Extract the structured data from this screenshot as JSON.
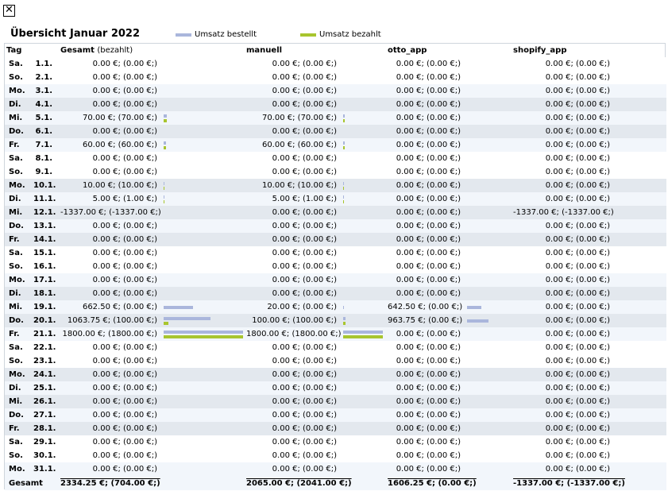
{
  "close_symbol": "✕",
  "title": "Übersicht Januar 2022",
  "legend": {
    "ordered": "Umsatz bestellt",
    "paid": "Umsatz bezahlt",
    "ordered_color": "#aab6dc",
    "paid_color": "#a8c52e"
  },
  "headers": {
    "day": "Tag",
    "total": "Gesamt",
    "total_note": "(bezahlt)",
    "ch1": "manuell",
    "ch2": "otto_app",
    "ch3": "shopify_app"
  },
  "max_value": 1800,
  "rows": [
    {
      "day": "Sa.",
      "date": "1.1.",
      "total": "0.00 €; (0.00 €;)",
      "c1": "0.00 €; (0.00 €;)",
      "c2": "0.00 €; (0.00 €;)",
      "c3": "0.00 €; (0.00 €;)",
      "tot_o": 0,
      "tot_p": 0,
      "c1_o": 0,
      "c1_p": 0,
      "c2_o": 0,
      "c2_p": 0
    },
    {
      "day": "So.",
      "date": "2.1.",
      "total": "0.00 €; (0.00 €;)",
      "c1": "0.00 €; (0.00 €;)",
      "c2": "0.00 €; (0.00 €;)",
      "c3": "0.00 €; (0.00 €;)",
      "tot_o": 0,
      "tot_p": 0,
      "c1_o": 0,
      "c1_p": 0,
      "c2_o": 0,
      "c2_p": 0
    },
    {
      "day": "Mo.",
      "date": "3.1.",
      "total": "0.00 €; (0.00 €;)",
      "c1": "0.00 €; (0.00 €;)",
      "c2": "0.00 €; (0.00 €;)",
      "c3": "0.00 €; (0.00 €;)",
      "tot_o": 0,
      "tot_p": 0,
      "c1_o": 0,
      "c1_p": 0,
      "c2_o": 0,
      "c2_p": 0
    },
    {
      "day": "Di.",
      "date": "4.1.",
      "total": "0.00 €; (0.00 €;)",
      "c1": "0.00 €; (0.00 €;)",
      "c2": "0.00 €; (0.00 €;)",
      "c3": "0.00 €; (0.00 €;)",
      "tot_o": 0,
      "tot_p": 0,
      "c1_o": 0,
      "c1_p": 0,
      "c2_o": 0,
      "c2_p": 0
    },
    {
      "day": "Mi.",
      "date": "5.1.",
      "total": "70.00 €; (70.00 €;)",
      "c1": "70.00 €; (70.00 €;)",
      "c2": "0.00 €; (0.00 €;)",
      "c3": "0.00 €; (0.00 €;)",
      "tot_o": 70,
      "tot_p": 70,
      "c1_o": 70,
      "c1_p": 70,
      "c2_o": 0,
      "c2_p": 0
    },
    {
      "day": "Do.",
      "date": "6.1.",
      "total": "0.00 €; (0.00 €;)",
      "c1": "0.00 €; (0.00 €;)",
      "c2": "0.00 €; (0.00 €;)",
      "c3": "0.00 €; (0.00 €;)",
      "tot_o": 0,
      "tot_p": 0,
      "c1_o": 0,
      "c1_p": 0,
      "c2_o": 0,
      "c2_p": 0
    },
    {
      "day": "Fr.",
      "date": "7.1.",
      "total": "60.00 €; (60.00 €;)",
      "c1": "60.00 €; (60.00 €;)",
      "c2": "0.00 €; (0.00 €;)",
      "c3": "0.00 €; (0.00 €;)",
      "tot_o": 60,
      "tot_p": 60,
      "c1_o": 60,
      "c1_p": 60,
      "c2_o": 0,
      "c2_p": 0
    },
    {
      "day": "Sa.",
      "date": "8.1.",
      "total": "0.00 €; (0.00 €;)",
      "c1": "0.00 €; (0.00 €;)",
      "c2": "0.00 €; (0.00 €;)",
      "c3": "0.00 €; (0.00 €;)",
      "tot_o": 0,
      "tot_p": 0,
      "c1_o": 0,
      "c1_p": 0,
      "c2_o": 0,
      "c2_p": 0
    },
    {
      "day": "So.",
      "date": "9.1.",
      "total": "0.00 €; (0.00 €;)",
      "c1": "0.00 €; (0.00 €;)",
      "c2": "0.00 €; (0.00 €;)",
      "c3": "0.00 €; (0.00 €;)",
      "tot_o": 0,
      "tot_p": 0,
      "c1_o": 0,
      "c1_p": 0,
      "c2_o": 0,
      "c2_p": 0
    },
    {
      "day": "Mo.",
      "date": "10.1.",
      "total": "10.00 €; (10.00 €;)",
      "c1": "10.00 €; (10.00 €;)",
      "c2": "0.00 €; (0.00 €;)",
      "c3": "0.00 €; (0.00 €;)",
      "tot_o": 10,
      "tot_p": 10,
      "c1_o": 10,
      "c1_p": 10,
      "c2_o": 0,
      "c2_p": 0
    },
    {
      "day": "Di.",
      "date": "11.1.",
      "total": "5.00 €; (1.00 €;)",
      "c1": "5.00 €; (1.00 €;)",
      "c2": "0.00 €; (0.00 €;)",
      "c3": "0.00 €; (0.00 €;)",
      "tot_o": 5,
      "tot_p": 1,
      "c1_o": 5,
      "c1_p": 1,
      "c2_o": 0,
      "c2_p": 0
    },
    {
      "day": "Mi.",
      "date": "12.1.",
      "total": "-1337.00 €; (-1337.00 €;)",
      "c1": "0.00 €; (0.00 €;)",
      "c2": "0.00 €; (0.00 €;)",
      "c3": "-1337.00 €; (-1337.00 €;)",
      "tot_o": 0,
      "tot_p": 0,
      "c1_o": 0,
      "c1_p": 0,
      "c2_o": 0,
      "c2_p": 0
    },
    {
      "day": "Do.",
      "date": "13.1.",
      "total": "0.00 €; (0.00 €;)",
      "c1": "0.00 €; (0.00 €;)",
      "c2": "0.00 €; (0.00 €;)",
      "c3": "0.00 €; (0.00 €;)",
      "tot_o": 0,
      "tot_p": 0,
      "c1_o": 0,
      "c1_p": 0,
      "c2_o": 0,
      "c2_p": 0
    },
    {
      "day": "Fr.",
      "date": "14.1.",
      "total": "0.00 €; (0.00 €;)",
      "c1": "0.00 €; (0.00 €;)",
      "c2": "0.00 €; (0.00 €;)",
      "c3": "0.00 €; (0.00 €;)",
      "tot_o": 0,
      "tot_p": 0,
      "c1_o": 0,
      "c1_p": 0,
      "c2_o": 0,
      "c2_p": 0
    },
    {
      "day": "Sa.",
      "date": "15.1.",
      "total": "0.00 €; (0.00 €;)",
      "c1": "0.00 €; (0.00 €;)",
      "c2": "0.00 €; (0.00 €;)",
      "c3": "0.00 €; (0.00 €;)",
      "tot_o": 0,
      "tot_p": 0,
      "c1_o": 0,
      "c1_p": 0,
      "c2_o": 0,
      "c2_p": 0
    },
    {
      "day": "So.",
      "date": "16.1.",
      "total": "0.00 €; (0.00 €;)",
      "c1": "0.00 €; (0.00 €;)",
      "c2": "0.00 €; (0.00 €;)",
      "c3": "0.00 €; (0.00 €;)",
      "tot_o": 0,
      "tot_p": 0,
      "c1_o": 0,
      "c1_p": 0,
      "c2_o": 0,
      "c2_p": 0
    },
    {
      "day": "Mo.",
      "date": "17.1.",
      "total": "0.00 €; (0.00 €;)",
      "c1": "0.00 €; (0.00 €;)",
      "c2": "0.00 €; (0.00 €;)",
      "c3": "0.00 €; (0.00 €;)",
      "tot_o": 0,
      "tot_p": 0,
      "c1_o": 0,
      "c1_p": 0,
      "c2_o": 0,
      "c2_p": 0
    },
    {
      "day": "Di.",
      "date": "18.1.",
      "total": "0.00 €; (0.00 €;)",
      "c1": "0.00 €; (0.00 €;)",
      "c2": "0.00 €; (0.00 €;)",
      "c3": "0.00 €; (0.00 €;)",
      "tot_o": 0,
      "tot_p": 0,
      "c1_o": 0,
      "c1_p": 0,
      "c2_o": 0,
      "c2_p": 0
    },
    {
      "day": "Mi.",
      "date": "19.1.",
      "total": "662.50 €; (0.00 €;)",
      "c1": "20.00 €; (0.00 €;)",
      "c2": "642.50 €; (0.00 €;)",
      "c3": "0.00 €; (0.00 €;)",
      "tot_o": 662.5,
      "tot_p": 0,
      "c1_o": 20,
      "c1_p": 0,
      "c2_o": 642.5,
      "c2_p": 0
    },
    {
      "day": "Do.",
      "date": "20.1.",
      "total": "1063.75 €; (100.00 €;)",
      "c1": "100.00 €; (100.00 €;)",
      "c2": "963.75 €; (0.00 €;)",
      "c3": "0.00 €; (0.00 €;)",
      "tot_o": 1063.75,
      "tot_p": 100,
      "c1_o": 100,
      "c1_p": 100,
      "c2_o": 963.75,
      "c2_p": 0
    },
    {
      "day": "Fr.",
      "date": "21.1.",
      "total": "1800.00 €; (1800.00 €;)",
      "c1": "1800.00 €; (1800.00 €;)",
      "c2": "0.00 €; (0.00 €;)",
      "c3": "0.00 €; (0.00 €;)",
      "tot_o": 1800,
      "tot_p": 1800,
      "c1_o": 1800,
      "c1_p": 1800,
      "c2_o": 0,
      "c2_p": 0
    },
    {
      "day": "Sa.",
      "date": "22.1.",
      "total": "0.00 €; (0.00 €;)",
      "c1": "0.00 €; (0.00 €;)",
      "c2": "0.00 €; (0.00 €;)",
      "c3": "0.00 €; (0.00 €;)",
      "tot_o": 0,
      "tot_p": 0,
      "c1_o": 0,
      "c1_p": 0,
      "c2_o": 0,
      "c2_p": 0
    },
    {
      "day": "So.",
      "date": "23.1.",
      "total": "0.00 €; (0.00 €;)",
      "c1": "0.00 €; (0.00 €;)",
      "c2": "0.00 €; (0.00 €;)",
      "c3": "0.00 €; (0.00 €;)",
      "tot_o": 0,
      "tot_p": 0,
      "c1_o": 0,
      "c1_p": 0,
      "c2_o": 0,
      "c2_p": 0
    },
    {
      "day": "Mo.",
      "date": "24.1.",
      "total": "0.00 €; (0.00 €;)",
      "c1": "0.00 €; (0.00 €;)",
      "c2": "0.00 €; (0.00 €;)",
      "c3": "0.00 €; (0.00 €;)",
      "tot_o": 0,
      "tot_p": 0,
      "c1_o": 0,
      "c1_p": 0,
      "c2_o": 0,
      "c2_p": 0
    },
    {
      "day": "Di.",
      "date": "25.1.",
      "total": "0.00 €; (0.00 €;)",
      "c1": "0.00 €; (0.00 €;)",
      "c2": "0.00 €; (0.00 €;)",
      "c3": "0.00 €; (0.00 €;)",
      "tot_o": 0,
      "tot_p": 0,
      "c1_o": 0,
      "c1_p": 0,
      "c2_o": 0,
      "c2_p": 0
    },
    {
      "day": "Mi.",
      "date": "26.1.",
      "total": "0.00 €; (0.00 €;)",
      "c1": "0.00 €; (0.00 €;)",
      "c2": "0.00 €; (0.00 €;)",
      "c3": "0.00 €; (0.00 €;)",
      "tot_o": 0,
      "tot_p": 0,
      "c1_o": 0,
      "c1_p": 0,
      "c2_o": 0,
      "c2_p": 0
    },
    {
      "day": "Do.",
      "date": "27.1.",
      "total": "0.00 €; (0.00 €;)",
      "c1": "0.00 €; (0.00 €;)",
      "c2": "0.00 €; (0.00 €;)",
      "c3": "0.00 €; (0.00 €;)",
      "tot_o": 0,
      "tot_p": 0,
      "c1_o": 0,
      "c1_p": 0,
      "c2_o": 0,
      "c2_p": 0
    },
    {
      "day": "Fr.",
      "date": "28.1.",
      "total": "0.00 €; (0.00 €;)",
      "c1": "0.00 €; (0.00 €;)",
      "c2": "0.00 €; (0.00 €;)",
      "c3": "0.00 €; (0.00 €;)",
      "tot_o": 0,
      "tot_p": 0,
      "c1_o": 0,
      "c1_p": 0,
      "c2_o": 0,
      "c2_p": 0
    },
    {
      "day": "Sa.",
      "date": "29.1.",
      "total": "0.00 €; (0.00 €;)",
      "c1": "0.00 €; (0.00 €;)",
      "c2": "0.00 €; (0.00 €;)",
      "c3": "0.00 €; (0.00 €;)",
      "tot_o": 0,
      "tot_p": 0,
      "c1_o": 0,
      "c1_p": 0,
      "c2_o": 0,
      "c2_p": 0
    },
    {
      "day": "So.",
      "date": "30.1.",
      "total": "0.00 €; (0.00 €;)",
      "c1": "0.00 €; (0.00 €;)",
      "c2": "0.00 €; (0.00 €;)",
      "c3": "0.00 €; (0.00 €;)",
      "tot_o": 0,
      "tot_p": 0,
      "c1_o": 0,
      "c1_p": 0,
      "c2_o": 0,
      "c2_p": 0
    },
    {
      "day": "Mo.",
      "date": "31.1.",
      "total": "0.00 €; (0.00 €;)",
      "c1": "0.00 €; (0.00 €;)",
      "c2": "0.00 €; (0.00 €;)",
      "c3": "0.00 €; (0.00 €;)",
      "tot_o": 0,
      "tot_p": 0,
      "c1_o": 0,
      "c1_p": 0,
      "c2_o": 0,
      "c2_p": 0
    }
  ],
  "footer": {
    "label": "Gesamt",
    "total": "2334.25 €; (704.00 €;)",
    "c1": "2065.00 €; (2041.00 €;)",
    "c2": "1606.25 €; (0.00 €;)",
    "c3": "-1337.00 €; (-1337.00 €;)"
  }
}
